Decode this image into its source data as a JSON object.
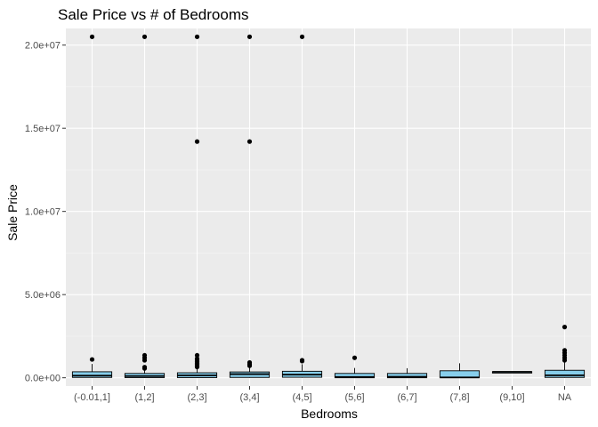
{
  "chart_data": {
    "type": "boxplot",
    "title": "Sale Price vs # of Bedrooms",
    "xlabel": "Bedrooms",
    "ylabel": "Sale Price",
    "ylim": [
      -500000,
      21000000
    ],
    "yticks": [
      {
        "value": 0,
        "label": "0.0e+00"
      },
      {
        "value": 5000000,
        "label": "5.0e+06"
      },
      {
        "value": 10000000,
        "label": "1.0e+07"
      },
      {
        "value": 15000000,
        "label": "1.5e+07"
      },
      {
        "value": 20000000,
        "label": "2.0e+07"
      }
    ],
    "grid": true,
    "box_fill": "#87ceeb",
    "panel_background": "#ebebeb",
    "categories": [
      "(-0.01,1]",
      "(1,2]",
      "(2,3]",
      "(3,4]",
      "(4,5]",
      "(5,6]",
      "(6,7]",
      "(7,8]",
      "(9,10]",
      "NA"
    ],
    "boxes": [
      {
        "min": 0,
        "q1": 20000,
        "median": 130000,
        "q3": 360000,
        "max": 830000,
        "outliers": [
          1100000,
          20500000
        ]
      },
      {
        "min": 0,
        "q1": 10000,
        "median": 100000,
        "q3": 260000,
        "max": 490000,
        "outliers": [
          560000,
          640000,
          1050000,
          1200000,
          1350000,
          20500000
        ]
      },
      {
        "min": 0,
        "q1": 10000,
        "median": 140000,
        "q3": 300000,
        "max": 580000,
        "outliers": [
          650000,
          720000,
          800000,
          880000,
          960000,
          1050000,
          1150000,
          1350000,
          14200000,
          20500000
        ]
      },
      {
        "min": 0,
        "q1": 20000,
        "median": 220000,
        "q3": 350000,
        "max": 640000,
        "outliers": [
          720000,
          820000,
          920000,
          14200000,
          20500000
        ]
      },
      {
        "min": 0,
        "q1": 30000,
        "median": 190000,
        "q3": 390000,
        "max": 820000,
        "outliers": [
          1000000,
          1050000,
          20500000
        ]
      },
      {
        "min": 0,
        "q1": 0,
        "median": 50000,
        "q3": 260000,
        "max": 590000,
        "outliers": [
          1200000
        ]
      },
      {
        "min": 0,
        "q1": 0,
        "median": 60000,
        "q3": 260000,
        "max": 570000,
        "outliers": []
      },
      {
        "min": 0,
        "q1": 0,
        "median": 20000,
        "q3": 420000,
        "max": 870000,
        "outliers": []
      },
      {
        "min": 340000,
        "q1": 345000,
        "median": 355000,
        "q3": 365000,
        "max": 370000,
        "outliers": []
      },
      {
        "min": 0,
        "q1": 20000,
        "median": 150000,
        "q3": 450000,
        "max": 950000,
        "outliers": [
          1050000,
          1200000,
          1350000,
          1500000,
          1650000,
          3050000
        ]
      }
    ]
  }
}
